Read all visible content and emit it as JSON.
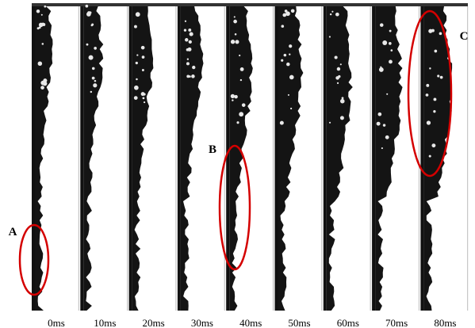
{
  "frames": [
    {
      "label": "0ms"
    },
    {
      "label": "10ms"
    },
    {
      "label": "20ms"
    },
    {
      "label": "30ms"
    },
    {
      "label": "40ms"
    },
    {
      "label": "50ms"
    },
    {
      "label": "60ms"
    },
    {
      "label": "70ms"
    },
    {
      "label": "80ms"
    }
  ],
  "annotations": [
    {
      "label": "A"
    },
    {
      "label": "B"
    },
    {
      "label": "C"
    }
  ]
}
